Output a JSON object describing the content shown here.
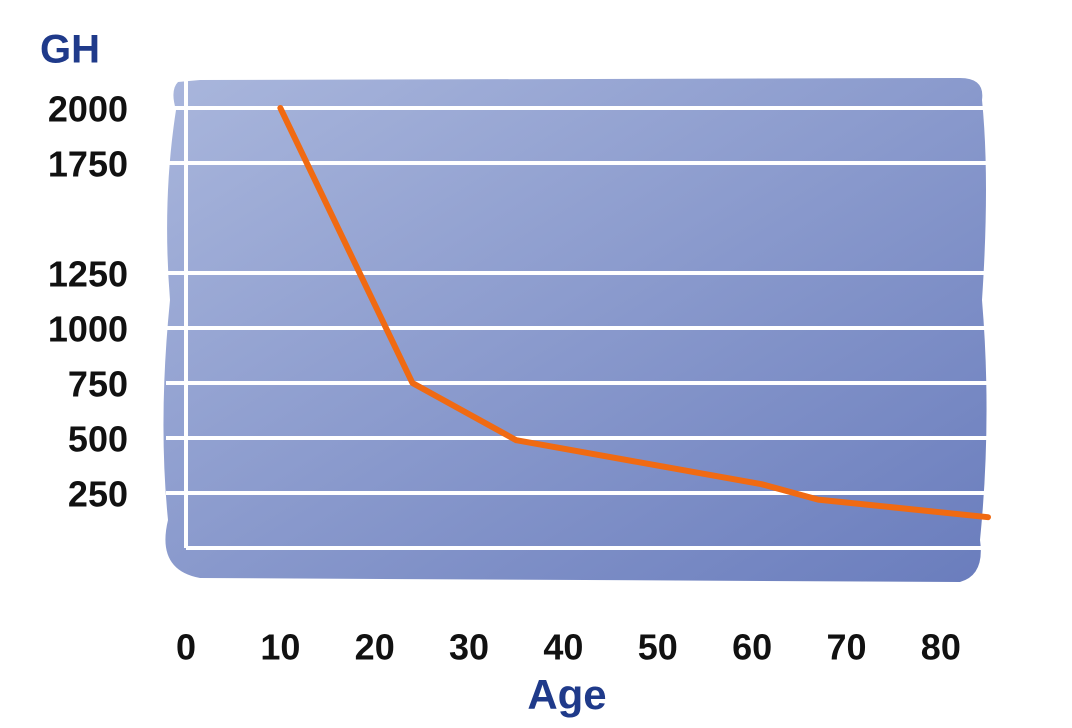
{
  "chart_data": {
    "type": "line",
    "title": "GH",
    "x_label": "Age",
    "x": [
      10,
      24,
      35,
      48,
      61,
      67,
      85
    ],
    "series": [
      {
        "name": "GH",
        "color": "#f06a12",
        "values": [
          2000,
          750,
          490,
          390,
          290,
          220,
          140
        ]
      }
    ],
    "xlim": [
      0,
      85
    ],
    "xticks": [
      0,
      10,
      20,
      30,
      40,
      50,
      60,
      70,
      80
    ],
    "ylim": [
      0,
      2000
    ],
    "yticks": [
      250,
      500,
      750,
      1000,
      1250,
      1750,
      2000
    ],
    "grid": true
  }
}
